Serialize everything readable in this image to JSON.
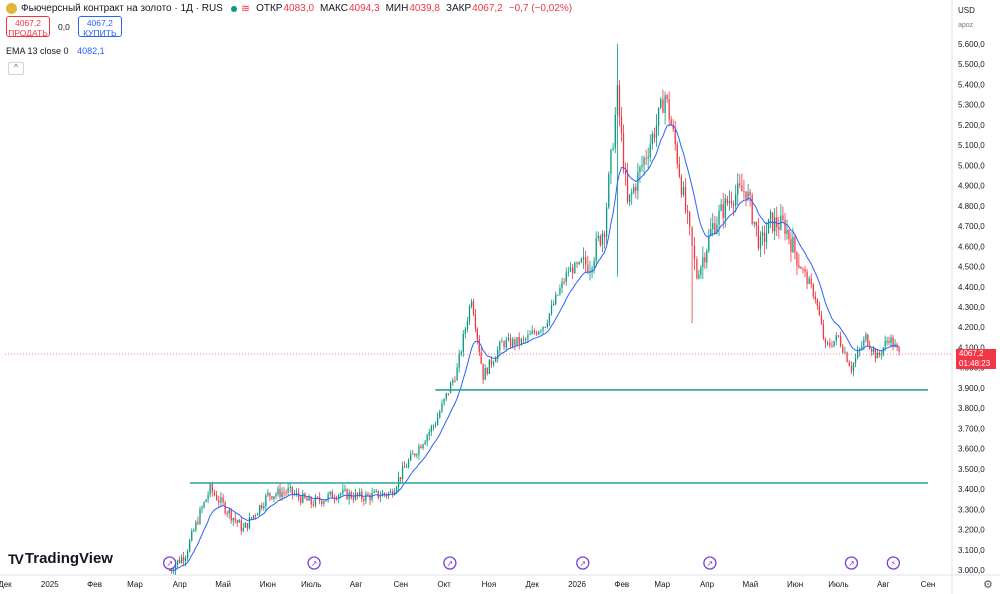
{
  "header": {
    "symbol_title": "Фьючерсный контракт на золото · 1Д · RUS",
    "open_label": "ОТКР",
    "open_value": "4083,0",
    "high_label": "МАКС",
    "high_value": "4094,3",
    "low_label": "МИН",
    "low_value": "4039,8",
    "close_label": "ЗАКР",
    "close_value": "4067,2",
    "change": "−0,7 (−0,02%)"
  },
  "trade": {
    "sell_price": "4067,2",
    "sell_label": "ПРОДАТЬ",
    "spread": "0,0",
    "buy_price": "4067,2",
    "buy_label": "КУПИТЬ"
  },
  "indicator": {
    "label": "EMA 13 close 0",
    "value": "4082,1"
  },
  "price_axis": {
    "currency": "USD",
    "scale_mode": "apoz"
  },
  "last_price": {
    "value": "4067,2",
    "countdown": "01:48:23"
  },
  "branding": {
    "name": "TradingView"
  },
  "colors": {
    "up": "#089981",
    "down": "#f23645",
    "ema": "#2962ff",
    "hline": "#26a69a"
  },
  "chart_data": {
    "type": "candlestick",
    "x_ticks": [
      "Дек",
      "2025",
      "Фев",
      "Мар",
      "Апр",
      "Май",
      "Июн",
      "Июль",
      "Авг",
      "Сен",
      "Окт",
      "Ноя",
      "Дек",
      "2026",
      "Фев",
      "Мар",
      "Апр",
      "Май",
      "Июн",
      "Июль",
      "Авг",
      "Сен"
    ],
    "y_ticks": [
      "3.000,0",
      "3.100,0",
      "3.200,0",
      "3.300,0",
      "3.400,0",
      "3.500,0",
      "3.600,0",
      "3.700,0",
      "3.800,0",
      "3.900,0",
      "4.000,0",
      "4.100,0",
      "4.200,0",
      "4.300,0",
      "4.400,0",
      "4.500,0",
      "4.600,0",
      "4.700,0",
      "4.800,0",
      "4.900,0",
      "5.000,0",
      "5.100,0",
      "5.200,0",
      "5.300,0",
      "5.400,0",
      "5.500,0",
      "5.600,0"
    ],
    "ylim": [
      3000,
      5600
    ],
    "x_range_months": [
      "2024-12",
      "2026-09"
    ],
    "close_trajectory": [
      {
        "x": "2025-03-25",
        "y": 3000
      },
      {
        "x": "2025-04-05",
        "y": 3080
      },
      {
        "x": "2025-04-15",
        "y": 3280
      },
      {
        "x": "2025-04-22",
        "y": 3400
      },
      {
        "x": "2025-05-01",
        "y": 3320
      },
      {
        "x": "2025-05-15",
        "y": 3200
      },
      {
        "x": "2025-06-01",
        "y": 3370
      },
      {
        "x": "2025-06-15",
        "y": 3390
      },
      {
        "x": "2025-07-01",
        "y": 3330
      },
      {
        "x": "2025-07-20",
        "y": 3380
      },
      {
        "x": "2025-08-05",
        "y": 3360
      },
      {
        "x": "2025-08-25",
        "y": 3380
      },
      {
        "x": "2025-09-05",
        "y": 3520
      },
      {
        "x": "2025-09-25",
        "y": 3730
      },
      {
        "x": "2025-10-10",
        "y": 3990
      },
      {
        "x": "2025-10-20",
        "y": 4350
      },
      {
        "x": "2025-10-28",
        "y": 3960
      },
      {
        "x": "2025-11-10",
        "y": 4120
      },
      {
        "x": "2025-11-25",
        "y": 4130
      },
      {
        "x": "2025-12-10",
        "y": 4220
      },
      {
        "x": "2025-12-26",
        "y": 4480
      },
      {
        "x": "2026-01-10",
        "y": 4520
      },
      {
        "x": "2026-01-20",
        "y": 4700
      },
      {
        "x": "2026-01-29",
        "y": 5350
      },
      {
        "x": "2026-02-05",
        "y": 4800
      },
      {
        "x": "2026-02-15",
        "y": 5000
      },
      {
        "x": "2026-02-25",
        "y": 5200
      },
      {
        "x": "2026-03-03",
        "y": 5350
      },
      {
        "x": "2026-03-10",
        "y": 5100
      },
      {
        "x": "2026-03-20",
        "y": 4650
      },
      {
        "x": "2026-03-25",
        "y": 4450
      },
      {
        "x": "2026-04-05",
        "y": 4700
      },
      {
        "x": "2026-04-18",
        "y": 4850
      },
      {
        "x": "2026-04-28",
        "y": 4880
      },
      {
        "x": "2026-05-08",
        "y": 4600
      },
      {
        "x": "2026-05-15",
        "y": 4720
      },
      {
        "x": "2026-05-25",
        "y": 4700
      },
      {
        "x": "2026-06-05",
        "y": 4500
      },
      {
        "x": "2026-06-15",
        "y": 4350
      },
      {
        "x": "2026-06-22",
        "y": 4100
      },
      {
        "x": "2026-07-01",
        "y": 4150
      },
      {
        "x": "2026-07-10",
        "y": 4000
      },
      {
        "x": "2026-07-20",
        "y": 4150
      },
      {
        "x": "2026-07-28",
        "y": 4050
      },
      {
        "x": "2026-08-05",
        "y": 4150
      },
      {
        "x": "2026-08-12",
        "y": 4067
      }
    ],
    "spikes": [
      {
        "x": "2026-01-29",
        "high": 5600,
        "low": 4450
      },
      {
        "x": "2026-03-22",
        "high": 4650,
        "low": 4220
      }
    ],
    "horizontal_levels": [
      {
        "y": 3430,
        "from": "2025-04-08",
        "to": "2026-09-01"
      },
      {
        "y": 3890,
        "from": "2025-09-25",
        "to": "2026-09-01"
      }
    ],
    "event_icon_dates": [
      "2025-03-25",
      "2025-07-03",
      "2025-10-05",
      "2026-01-05",
      "2026-04-03",
      "2026-07-10",
      "2026-08-08"
    ]
  }
}
